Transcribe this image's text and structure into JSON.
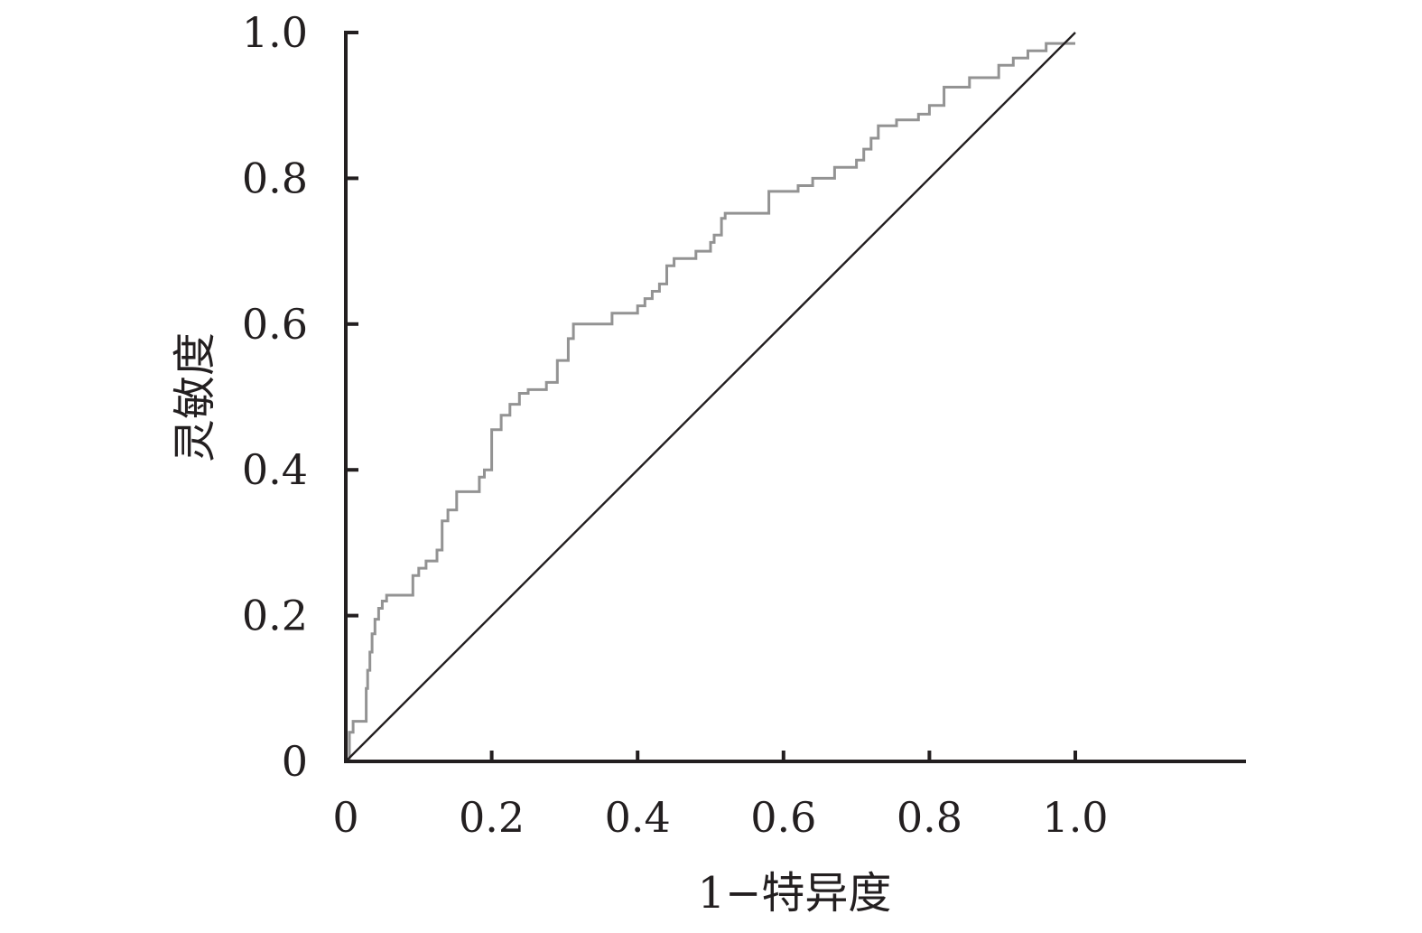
{
  "chart_data": {
    "type": "line",
    "title": "",
    "xlabel": "1−特异度",
    "ylabel": "灵敏度",
    "xlim": [
      0,
      1.2
    ],
    "ylim": [
      0,
      1.0
    ],
    "x_tick_labels": [
      "0",
      "0.2",
      "0.4",
      "0.6",
      "0.8",
      "1.0"
    ],
    "y_tick_labels": [
      "0",
      "0.2",
      "0.4",
      "0.6",
      "0.8",
      "1.0"
    ],
    "grid": false,
    "legend": "none",
    "colors": {
      "axis": "#231f20",
      "roc_curve": "#939393",
      "reference_line": "#231f20"
    },
    "series": [
      {
        "role": "roc_curve",
        "step": true,
        "x": [
          0.0,
          0.005,
          0.01,
          0.028,
          0.03,
          0.033,
          0.036,
          0.04,
          0.045,
          0.05,
          0.056,
          0.06,
          0.075,
          0.092,
          0.1,
          0.11,
          0.125,
          0.132,
          0.14,
          0.152,
          0.183,
          0.19,
          0.2,
          0.213,
          0.225,
          0.238,
          0.25,
          0.275,
          0.29,
          0.305,
          0.312,
          0.365,
          0.38,
          0.4,
          0.41,
          0.42,
          0.43,
          0.44,
          0.45,
          0.465,
          0.48,
          0.5,
          0.505,
          0.515,
          0.52,
          0.58,
          0.59,
          0.62,
          0.64,
          0.67,
          0.7,
          0.71,
          0.72,
          0.73,
          0.755,
          0.785,
          0.8,
          0.82,
          0.855,
          0.895,
          0.905,
          0.915,
          0.935,
          0.96,
          0.99,
          1.0
        ],
        "y": [
          0.0,
          0.04,
          0.055,
          0.1,
          0.125,
          0.15,
          0.175,
          0.195,
          0.21,
          0.22,
          0.228,
          0.228,
          0.228,
          0.255,
          0.265,
          0.275,
          0.29,
          0.33,
          0.345,
          0.37,
          0.39,
          0.4,
          0.455,
          0.475,
          0.49,
          0.505,
          0.51,
          0.52,
          0.55,
          0.58,
          0.6,
          0.615,
          0.615,
          0.625,
          0.635,
          0.645,
          0.655,
          0.68,
          0.69,
          0.69,
          0.7,
          0.712,
          0.722,
          0.745,
          0.752,
          0.782,
          0.782,
          0.79,
          0.8,
          0.815,
          0.825,
          0.84,
          0.855,
          0.872,
          0.88,
          0.888,
          0.9,
          0.925,
          0.938,
          0.955,
          0.955,
          0.965,
          0.975,
          0.985,
          0.985,
          0.985
        ]
      },
      {
        "role": "reference_line",
        "step": false,
        "x": [
          0,
          1.0
        ],
        "y": [
          0,
          1.0
        ]
      }
    ]
  }
}
